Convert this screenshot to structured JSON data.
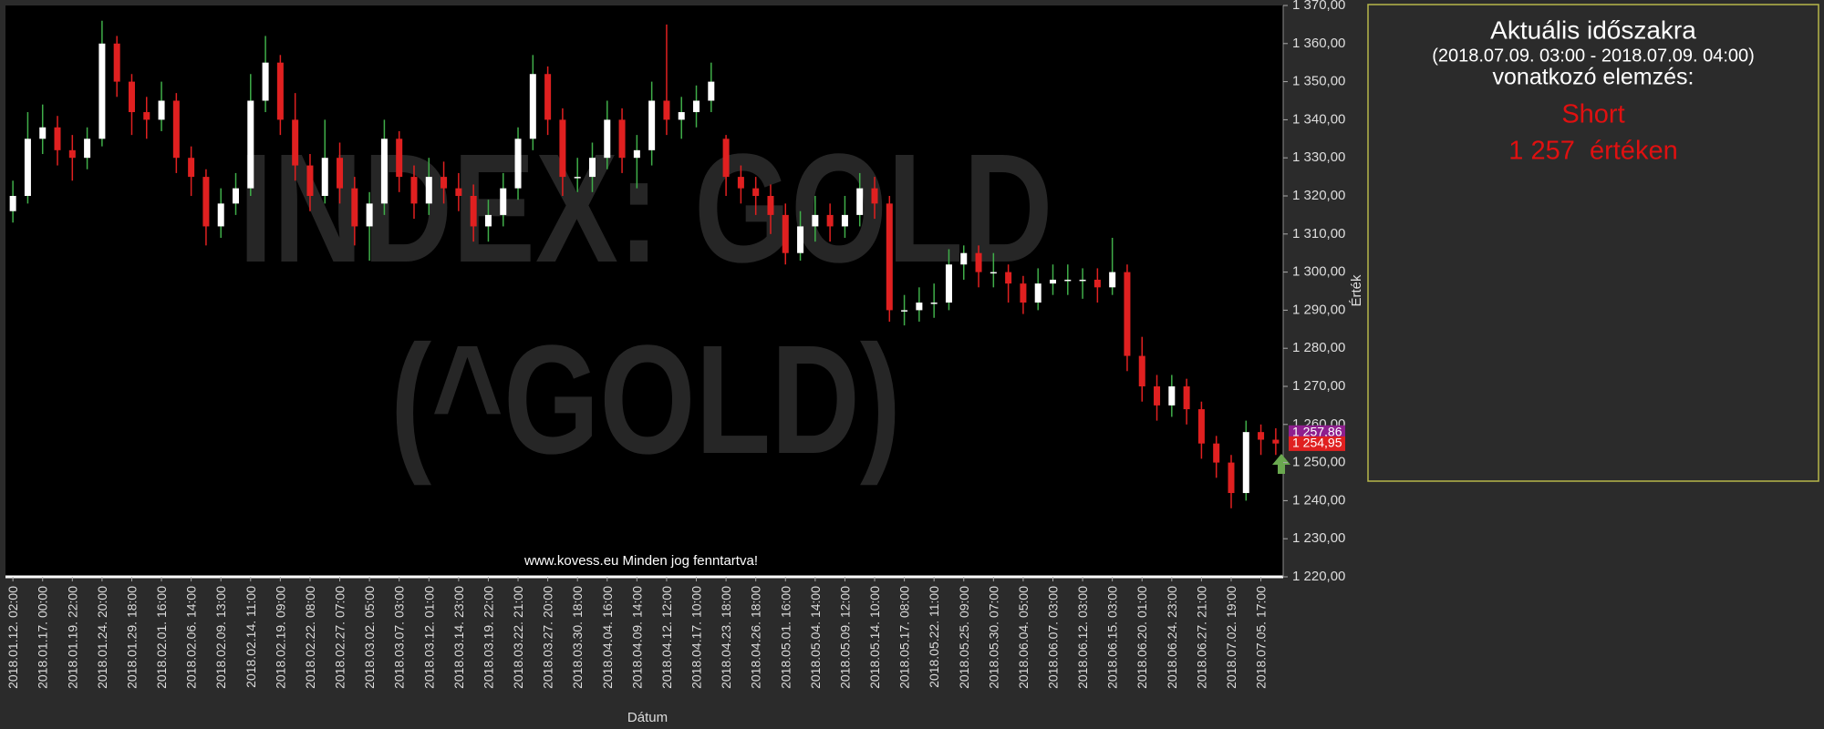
{
  "chart_data": {
    "type": "candlestick",
    "watermark": [
      "INDEX: GOLD",
      "(^GOLD)"
    ],
    "footer": "www.kovess.eu Minden jog fenntartva!",
    "x_label": "Dátum",
    "y_label": "Érték",
    "categories": [
      "2018.01.12. 02:00",
      null,
      "2018.01.17. 00:00",
      null,
      "2018.01.19. 22:00",
      null,
      "2018.01.24. 20:00",
      null,
      "2018.01.29. 18:00",
      null,
      "2018.02.01. 16:00",
      null,
      "2018.02.06. 14:00",
      null,
      "2018.02.09. 13:00",
      null,
      "2018.02.14. 11:00",
      null,
      "2018.02.19. 09:00",
      null,
      "2018.02.22. 08:00",
      null,
      "2018.02.27. 07:00",
      null,
      "2018.03.02. 05:00",
      null,
      "2018.03.07. 03:00",
      null,
      "2018.03.12. 01:00",
      null,
      "2018.03.14. 23:00",
      null,
      "2018.03.19. 22:00",
      null,
      "2018.03.22. 21:00",
      null,
      "2018.03.27. 20:00",
      null,
      "2018.03.30. 18:00",
      null,
      "2018.04.04. 16:00",
      null,
      "2018.04.09. 14:00",
      null,
      "2018.04.12. 12:00",
      null,
      "2018.04.17. 10:00",
      null,
      "2018.04.23. 18:00",
      null,
      "2018.04.26. 18:00",
      null,
      "2018.05.01. 16:00",
      null,
      "2018.05.04. 14:00",
      null,
      "2018.05.09. 12:00",
      null,
      "2018.05.14. 10:00",
      null,
      "2018.05.17. 08:00",
      null,
      "2018.05.22. 11:00",
      null,
      "2018.05.25. 09:00",
      null,
      "2018.05.30. 07:00",
      null,
      "2018.06.04. 05:00",
      null,
      "2018.06.07. 03:00",
      null,
      "2018.06.12. 03:00",
      null,
      "2018.06.15. 03:00",
      null,
      "2018.06.20. 01:00",
      null,
      "2018.06.24. 23:00",
      null,
      "2018.06.27. 21:00",
      null,
      "2018.07.02. 19:00",
      null,
      "2018.07.05. 17:00",
      null
    ],
    "open": [
      1316,
      1320,
      1335,
      1338,
      1332,
      1330,
      1335,
      1360,
      1350,
      1342,
      1340,
      1345,
      1330,
      1325,
      1312,
      1318,
      1322,
      1345,
      1355,
      1340,
      1328,
      1320,
      1330,
      1322,
      1312,
      1318,
      1335,
      1325,
      1318,
      1325,
      1322,
      1320,
      1312,
      1315,
      1322,
      1335,
      1352,
      1340,
      1325,
      1325,
      1330,
      1340,
      1330,
      1332,
      1345,
      1340,
      1342,
      1345,
      1335,
      1325,
      1322,
      1320,
      1315,
      1305,
      1312,
      1315,
      1312,
      1315,
      1322,
      1318,
      1290,
      1290,
      1292,
      1292,
      1302,
      1305,
      1300,
      1300,
      1297,
      1292,
      1297,
      1298,
      1298,
      1298,
      1296,
      1300,
      1278,
      1270,
      1265,
      1270,
      1264,
      1255,
      1250,
      1242,
      1258,
      1256
    ],
    "high": [
      1324,
      1342,
      1344,
      1341,
      1336,
      1338,
      1366,
      1362,
      1352,
      1346,
      1350,
      1347,
      1333,
      1327,
      1322,
      1326,
      1352,
      1362,
      1357,
      1347,
      1331,
      1340,
      1334,
      1325,
      1321,
      1340,
      1337,
      1328,
      1330,
      1329,
      1326,
      1323,
      1319,
      1326,
      1338,
      1357,
      1354,
      1343,
      1330,
      1334,
      1345,
      1343,
      1336,
      1350,
      1365,
      1346,
      1349,
      1355,
      1336,
      1328,
      1325,
      1323,
      1318,
      1316,
      1320,
      1318,
      1320,
      1326,
      1325,
      1320,
      1294,
      1296,
      1297,
      1306,
      1307,
      1307,
      1305,
      1302,
      1299,
      1301,
      1302,
      1302,
      1301,
      1301,
      1309,
      1302,
      1283,
      1273,
      1273,
      1272,
      1266,
      1257,
      1252,
      1261,
      1260,
      1259
    ],
    "low": [
      1313,
      1318,
      1331,
      1328,
      1324,
      1327,
      1333,
      1346,
      1336,
      1335,
      1337,
      1326,
      1320,
      1307,
      1309,
      1315,
      1320,
      1342,
      1336,
      1324,
      1316,
      1318,
      1318,
      1307,
      1303,
      1315,
      1321,
      1314,
      1315,
      1318,
      1316,
      1308,
      1308,
      1312,
      1319,
      1332,
      1336,
      1320,
      1321,
      1321,
      1327,
      1326,
      1322,
      1328,
      1336,
      1335,
      1338,
      1342,
      1320,
      1318,
      1315,
      1310,
      1302,
      1303,
      1308,
      1308,
      1309,
      1312,
      1314,
      1287,
      1286,
      1287,
      1288,
      1290,
      1298,
      1296,
      1296,
      1292,
      1289,
      1290,
      1294,
      1294,
      1293,
      1292,
      1294,
      1274,
      1266,
      1261,
      1262,
      1260,
      1251,
      1246,
      1238,
      1240,
      1252,
      1252
    ],
    "close": [
      1320,
      1335,
      1338,
      1332,
      1330,
      1335,
      1360,
      1350,
      1342,
      1340,
      1345,
      1330,
      1325,
      1312,
      1318,
      1322,
      1345,
      1355,
      1340,
      1328,
      1320,
      1330,
      1322,
      1312,
      1318,
      1335,
      1325,
      1318,
      1325,
      1322,
      1320,
      1312,
      1315,
      1322,
      1335,
      1352,
      1340,
      1325,
      1325,
      1330,
      1340,
      1330,
      1332,
      1345,
      1340,
      1342,
      1345,
      1350,
      1325,
      1322,
      1320,
      1315,
      1305,
      1312,
      1315,
      1312,
      1315,
      1322,
      1318,
      1290,
      1290,
      1292,
      1292,
      1302,
      1305,
      1300,
      1300,
      1297,
      1292,
      1297,
      1298,
      1298,
      1298,
      1296,
      1300,
      1278,
      1270,
      1265,
      1270,
      1264,
      1255,
      1250,
      1242,
      1258,
      1256,
      1255
    ],
    "up_color": "#ffffff",
    "down_color": "#e02020",
    "wick_color": "#3fae49",
    "ylim": [
      1220,
      1370
    ],
    "yticks": [
      {
        "value": 1220,
        "label": "1 220,00"
      },
      {
        "value": 1230,
        "label": "1 230,00"
      },
      {
        "value": 1240,
        "label": "1 240,00"
      },
      {
        "value": 1250,
        "label": "1 250,00"
      },
      {
        "value": 1260,
        "label": "1 260,00"
      },
      {
        "value": 1270,
        "label": "1 270,00"
      },
      {
        "value": 1280,
        "label": "1 280,00"
      },
      {
        "value": 1290,
        "label": "1 290,00"
      },
      {
        "value": 1300,
        "label": "1 300,00"
      },
      {
        "value": 1310,
        "label": "1 310,00"
      },
      {
        "value": 1320,
        "label": "1 320,00"
      },
      {
        "value": 1330,
        "label": "1 330,00"
      },
      {
        "value": 1340,
        "label": "1 340,00"
      },
      {
        "value": 1350,
        "label": "1 350,00"
      },
      {
        "value": 1360,
        "label": "1 360,00"
      },
      {
        "value": 1370,
        "label": "1 370,00"
      }
    ],
    "last_prices": [
      {
        "value": 1257.86,
        "label": "1 257,86",
        "color": "#8e1f8e"
      },
      {
        "value": 1254.95,
        "label": "1 254,95",
        "color": "#e02020"
      }
    ]
  },
  "panel": {
    "title": "Aktuális időszakra",
    "period": "(2018.07.09. 03:00 - 2018.07.09. 04:00)",
    "subtitle": "vonatkozó elemzés:",
    "signal": "Short",
    "price_text": "1 257  értéken"
  }
}
